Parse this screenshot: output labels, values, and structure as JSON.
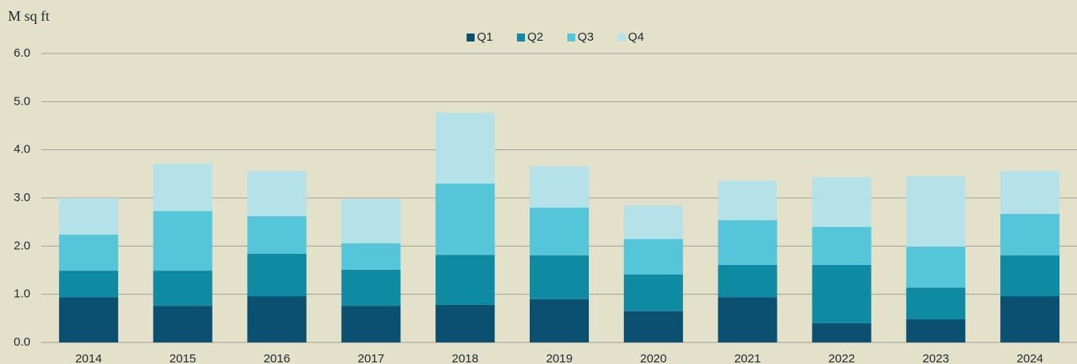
{
  "chart_data": {
    "type": "stacked_bar",
    "y_axis_label": "M sq ft",
    "categories": [
      "2014",
      "2015",
      "2016",
      "2017",
      "2018",
      "2019",
      "2020",
      "2021",
      "2022",
      "2023",
      "2024"
    ],
    "series": [
      {
        "name": "Q1",
        "color": "#0b4f71",
        "values": [
          0.94,
          0.76,
          0.96,
          0.76,
          0.78,
          0.9,
          0.65,
          0.94,
          0.4,
          0.48,
          0.96
        ]
      },
      {
        "name": "Q2",
        "color": "#0f8aa3",
        "values": [
          0.55,
          0.73,
          0.88,
          0.75,
          1.04,
          0.91,
          0.76,
          0.67,
          1.21,
          0.66,
          0.85
        ]
      },
      {
        "name": "Q3",
        "color": "#55c6d9",
        "values": [
          0.75,
          1.24,
          0.78,
          0.55,
          1.48,
          0.99,
          0.74,
          0.93,
          0.79,
          0.85,
          0.86
        ]
      },
      {
        "name": "Q4",
        "color": "#b5e1e9",
        "values": [
          0.76,
          0.98,
          0.94,
          0.92,
          1.47,
          0.86,
          0.7,
          0.82,
          1.03,
          1.46,
          0.89
        ]
      }
    ],
    "ylim": [
      0,
      6
    ],
    "yticks": [
      {
        "value": 0,
        "label": "0.0"
      },
      {
        "value": 1,
        "label": "1.0"
      },
      {
        "value": 2,
        "label": "2.0"
      },
      {
        "value": 3,
        "label": "3.0"
      },
      {
        "value": 4,
        "label": "4.0"
      },
      {
        "value": 5,
        "label": "5.0"
      },
      {
        "value": 6,
        "label": "6.0"
      }
    ],
    "grid": true,
    "legend": "top"
  }
}
